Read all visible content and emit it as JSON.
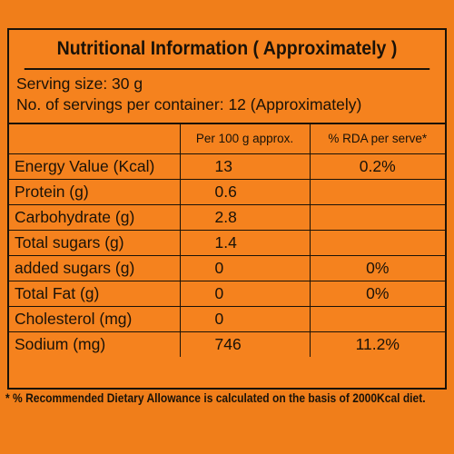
{
  "title": "Nutritional Information ( Approximately )",
  "serving": {
    "size": "Serving size: 30 g",
    "count": "No. of servings per container: 12 (Approximately)"
  },
  "columns": {
    "nutrient": "",
    "per100": "Per 100 g approx.",
    "rda": "% RDA per serve*"
  },
  "rows": [
    {
      "nutrient": "Energy Value (Kcal)",
      "per100": "13",
      "rda": "0.2%"
    },
    {
      "nutrient": "Protein (g)",
      "per100": "0.6",
      "rda": ""
    },
    {
      "nutrient": "Carbohydrate (g)",
      "per100": "2.8",
      "rda": ""
    },
    {
      "nutrient": "Total sugars (g)",
      "per100": "1.4",
      "rda": ""
    },
    {
      "nutrient": "added sugars (g)",
      "per100": "0",
      "rda": "0%"
    },
    {
      "nutrient": "Total Fat (g)",
      "per100": "0",
      "rda": "0%"
    },
    {
      "nutrient": "Cholesterol (mg)",
      "per100": "0",
      "rda": ""
    },
    {
      "nutrient": "Sodium (mg)",
      "per100": "746",
      "rda": "11.2%"
    }
  ],
  "footnote": "* % Recommended Dietary Allowance is calculated on the basis of 2000Kcal diet.",
  "colors": {
    "background": "#f07e1a",
    "ink": "#1a1208"
  }
}
